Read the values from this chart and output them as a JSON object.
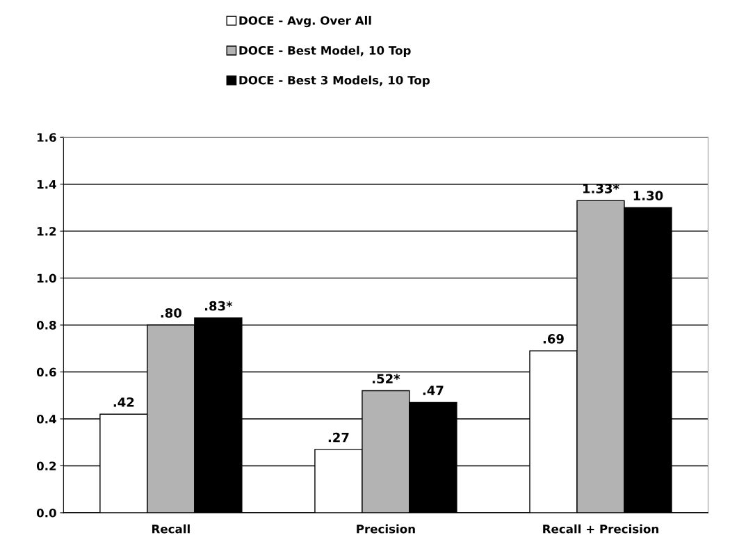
{
  "chart_data": {
    "type": "bar",
    "categories": [
      "Recall",
      "Precision",
      "Recall + Precision"
    ],
    "series": [
      {
        "name": "DOCE - Avg. Over All",
        "color": "#ffffff",
        "values": [
          0.42,
          0.27,
          0.69
        ],
        "value_labels": [
          ".42",
          ".27",
          ".69"
        ]
      },
      {
        "name": "DOCE - Best Model, 10 Top",
        "color": "#b3b3b3",
        "values": [
          0.8,
          0.52,
          1.33
        ],
        "value_labels": [
          ".80",
          ".52*",
          "1.33*"
        ]
      },
      {
        "name": "DOCE - Best 3 Models, 10 Top",
        "color": "#000000",
        "values": [
          0.83,
          0.47,
          1.3
        ],
        "value_labels": [
          ".83*",
          ".47",
          "1.30"
        ]
      }
    ],
    "ylim": [
      0,
      1.6
    ],
    "yticks": [
      {
        "value": 0,
        "label": "0.0"
      },
      {
        "value": 0.2,
        "label": "0.2"
      },
      {
        "value": 0.4,
        "label": "0.4"
      },
      {
        "value": 0.6,
        "label": "0.6"
      },
      {
        "value": 0.8,
        "label": "0.8"
      },
      {
        "value": 1.0,
        "label": "1.0"
      },
      {
        "value": 1.2,
        "label": "1.2"
      },
      {
        "value": 1.4,
        "label": "1.4"
      },
      {
        "value": 1.6,
        "label": "1.6"
      }
    ],
    "grid": "y",
    "legend": "top"
  }
}
